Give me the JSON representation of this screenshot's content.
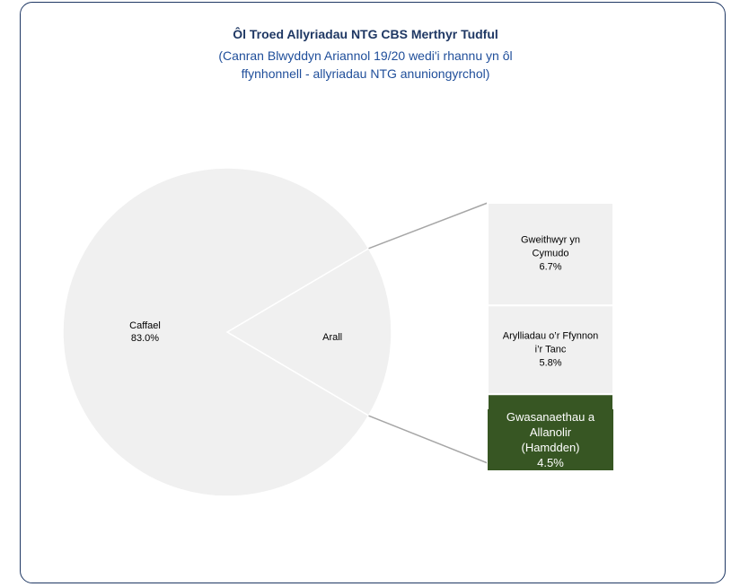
{
  "chart_data": {
    "type": "pie-of-bar",
    "title": "Ôl Troed Allyriadau NTG CBS Merthyr Tudful",
    "subtitle": "(Canran Blwyddyn Ariannol 19/20 wedi'i rhannu yn ôl ffynhonnell - allyriadau NTG anuniongyrchol)",
    "categories": [
      "Caffael"
    ],
    "values": [
      83.0
    ],
    "value_labels": [
      "83.0%"
    ],
    "color": "#f0f0f0",
    "other_label": "Arall",
    "breakdown": {
      "categories": [
        "Gweithwyr yn Cymudo",
        "Arylliadau o’r Ffynnon i’r Tanc",
        "Gwasanaethau a Allanolir (Hamdden)"
      ],
      "values": [
        6.7,
        5.8,
        4.5
      ],
      "value_labels": [
        "6.7%",
        "5.8%",
        "4.5%"
      ],
      "colors": [
        "#f0f0f0",
        "#f0f0f0",
        "#375623"
      ]
    }
  }
}
